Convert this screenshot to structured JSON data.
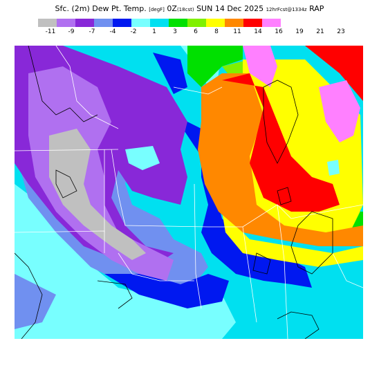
{
  "header": {
    "title_main": "Sfc. (2m) Dew Pt. Temp.",
    "units": "[degF]",
    "valid_time": "0Z",
    "valid_local": "(18cst)",
    "date": "SUN 14 Dec 2025",
    "forecast": "12hrFcst@1334z",
    "model": "RAP"
  },
  "colorbar": {
    "colors": [
      "#c0c0c0",
      "#b070f0",
      "#8828d8",
      "#7090f0",
      "#0018f0",
      "#78ffff",
      "#00e0f0",
      "#00e000",
      "#80f000",
      "#ffff00",
      "#ff8800",
      "#ff0000",
      "#ff80ff"
    ],
    "labels": [
      "-11",
      "-9",
      "-7",
      "-4",
      "-2",
      "1",
      "3",
      "6",
      "8",
      "11",
      "14",
      "16",
      "19",
      "21",
      "23"
    ]
  },
  "map": {
    "background": "#00e0f0",
    "fields": [
      {
        "color": "#78ffff"
      },
      {
        "color": "#7090f0"
      },
      {
        "color": "#0018f0"
      },
      {
        "color": "#8828d8"
      },
      {
        "color": "#b070f0"
      },
      {
        "color": "#c0c0c0"
      },
      {
        "color": "#00e000"
      },
      {
        "color": "#80f000"
      },
      {
        "color": "#ffff00"
      },
      {
        "color": "#ff8800"
      },
      {
        "color": "#ff0000"
      },
      {
        "color": "#ff80ff"
      }
    ]
  }
}
